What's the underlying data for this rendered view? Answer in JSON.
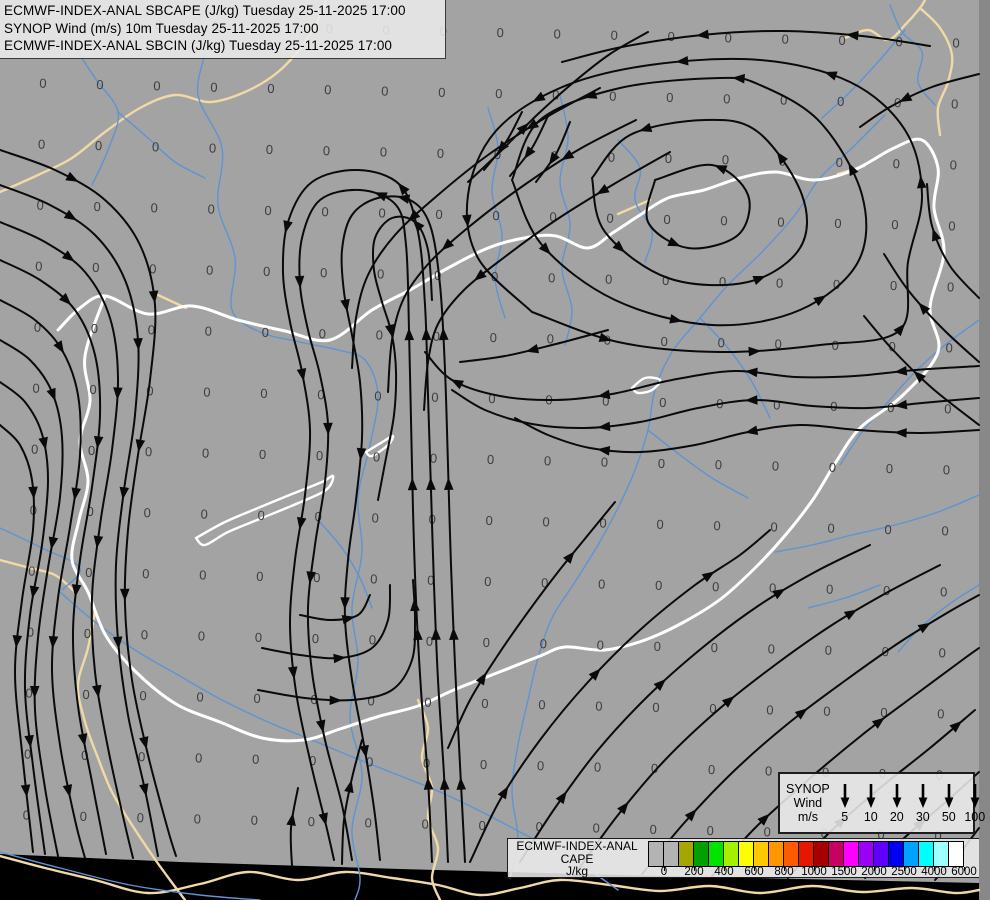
{
  "titles": [
    "ECMWF-INDEX-ANAL SBCAPE (J/kg) Tuesday 25-11-2025 17:00",
    "SYNOP Wind (m/s) 10m Tuesday 25-11-2025 17:00",
    "ECMWF-INDEX-ANAL SBCIN (J/kg) Tuesday 25-11-2025 17:00"
  ],
  "wind_legend": {
    "source": "SYNOP",
    "param": "Wind",
    "unit": "m/s",
    "arrow_icon": "down-arrow",
    "values": [
      "5",
      "10",
      "20",
      "30",
      "50",
      "100"
    ]
  },
  "cape_legend": {
    "source": "ECMWF-INDEX-ANAL",
    "param": "CAPE",
    "unit": "J/kg",
    "tick_labels": [
      "0",
      "200",
      "400",
      "600",
      "800",
      "1000",
      "1500",
      "2000",
      "2500",
      "4000",
      "6000"
    ],
    "colors": [
      "#b3b3b3",
      "#b3b3b3",
      "#a6a600",
      "#00a000",
      "#00e400",
      "#a4f000",
      "#ffff00",
      "#ffc800",
      "#ff9600",
      "#ff5a00",
      "#e61700",
      "#a80000",
      "#c8005f",
      "#ff00ff",
      "#9900f5",
      "#5f00ff",
      "#0000f0",
      "#00a2ff",
      "#00ffff",
      "#a0ffff",
      "#ffffff"
    ]
  },
  "map": {
    "grid_value": "0"
  },
  "colors": {
    "map-bg": "#a3a3a3",
    "stream-color": "#0a0a0a",
    "tan-border-color": "#f0d9a7",
    "river-color": "#6093d2",
    "primary-border-color": "#ffffff",
    "grid-value-color": "#3e3e3e",
    "outside-domain-color": "#000000",
    "panel-bg": "rgba(235,235,235,0.87)"
  }
}
